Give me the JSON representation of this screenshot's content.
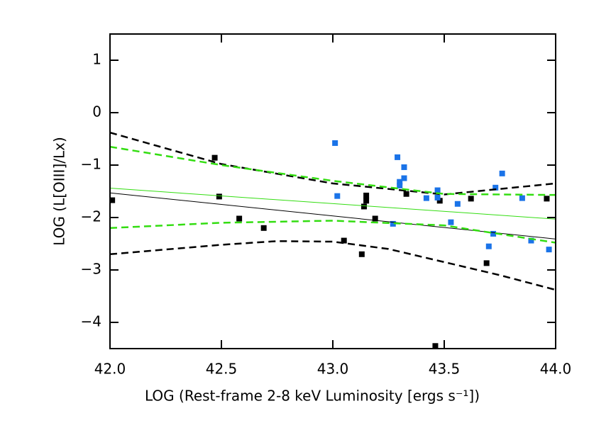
{
  "chart_data": {
    "type": "scatter",
    "x_label": "LOG (Rest-frame 2-8 keV Luminosity [ergs s⁻¹])",
    "y_label": "LOG (L[OIII]/Lx)",
    "xlim": [
      42.0,
      44.0
    ],
    "ylim": [
      -4.5,
      1.5
    ],
    "xticks": [
      {
        "value": 42,
        "label": "42.0"
      },
      {
        "value": 42.5,
        "label": "42.5"
      },
      {
        "value": 43,
        "label": "43.0"
      },
      {
        "value": 43.5,
        "label": "43.5"
      },
      {
        "value": 44,
        "label": "44.0"
      }
    ],
    "yticks": [
      {
        "value": -4,
        "label": "−4"
      },
      {
        "value": -3,
        "label": "−3"
      },
      {
        "value": -2,
        "label": "−2"
      },
      {
        "value": -1,
        "label": "−1"
      },
      0,
      1
    ],
    "series": [
      {
        "kind": "points",
        "color": "#000000",
        "x": [
          42.01,
          42.47,
          42.49,
          42.58,
          42.69,
          43.05,
          43.13,
          43.14,
          43.15,
          43.15,
          43.19,
          43.33,
          43.46,
          43.48,
          43.62,
          43.69,
          43.96
        ],
        "values": [
          -1.67,
          -0.86,
          -1.6,
          -2.02,
          -2.2,
          -2.44,
          -2.7,
          -1.79,
          -1.58,
          -1.68,
          -2.02,
          -1.55,
          -4.45,
          -1.68,
          -1.64,
          -2.87,
          -1.64
        ]
      },
      {
        "kind": "points",
        "color": "#1a73e8",
        "x": [
          43.02,
          43.01,
          43.29,
          43.3,
          43.3,
          43.32,
          43.32,
          43.27,
          43.42,
          43.47,
          43.47,
          43.56,
          43.53,
          43.72,
          43.7,
          43.73,
          43.76,
          43.85,
          43.89,
          43.97
        ],
        "values": [
          -1.59,
          -0.58,
          -0.85,
          -1.32,
          -1.39,
          -1.04,
          -1.25,
          -2.12,
          -1.63,
          -1.48,
          -1.62,
          -1.74,
          -2.09,
          -2.31,
          -2.55,
          -1.43,
          -1.16,
          -1.63,
          -2.44,
          -2.61
        ]
      },
      {
        "kind": "line",
        "dash": false,
        "color": "#000000",
        "x": [
          42.0,
          44.0
        ],
        "values": [
          -1.53,
          -2.41
        ]
      },
      {
        "kind": "line",
        "dash": false,
        "color": "#33dd11",
        "x": [
          42.0,
          44.0
        ],
        "values": [
          -1.44,
          -2.03
        ]
      },
      {
        "kind": "line",
        "dash": true,
        "color": "#000000",
        "x": [
          42.0,
          42.5,
          43.0,
          43.5,
          44.0
        ],
        "values": [
          -0.38,
          -0.98,
          -1.35,
          -1.56,
          -1.35
        ]
      },
      {
        "kind": "line",
        "dash": true,
        "color": "#000000",
        "x": [
          42.0,
          42.5,
          42.75,
          43.0,
          43.25,
          43.5,
          43.75,
          44.0
        ],
        "values": [
          -2.7,
          -2.52,
          -2.45,
          -2.46,
          -2.6,
          -2.85,
          -3.1,
          -3.38
        ]
      },
      {
        "kind": "line",
        "dash": true,
        "color": "#33dd11",
        "x": [
          42.0,
          42.5,
          43.0,
          43.5,
          44.0
        ],
        "values": [
          -0.65,
          -1.0,
          -1.3,
          -1.55,
          -1.57
        ]
      },
      {
        "kind": "line",
        "dash": true,
        "color": "#33dd11",
        "x": [
          42.0,
          42.5,
          43.0,
          43.5,
          44.0
        ],
        "values": [
          -2.2,
          -2.1,
          -2.06,
          -2.15,
          -2.48
        ]
      }
    ]
  }
}
